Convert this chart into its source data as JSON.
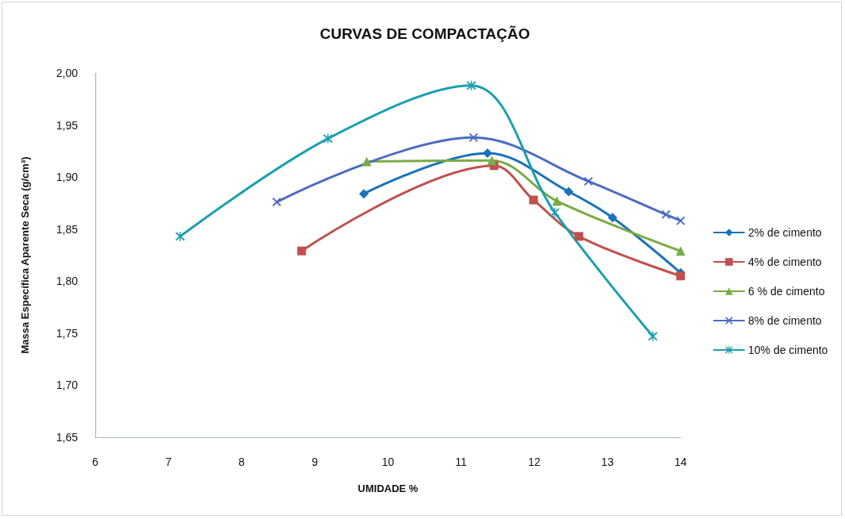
{
  "chart_data": {
    "type": "line",
    "title": "CURVAS DE COMPACTAÇÃO",
    "xlabel": "UMIDADE %",
    "ylabel": "Massa Específica Aparente Seca (g/cm³)",
    "xlim": [
      6,
      14
    ],
    "xticks": [
      6,
      7,
      8,
      9,
      10,
      11,
      12,
      13,
      14
    ],
    "ylim": [
      1.65,
      2.0
    ],
    "yticks": [
      {
        "value": 1.65,
        "label": "1,65"
      },
      {
        "value": 1.7,
        "label": "1,70"
      },
      {
        "value": 1.75,
        "label": "1,75"
      },
      {
        "value": 1.8,
        "label": "1,80"
      },
      {
        "value": 1.85,
        "label": "1,85"
      },
      {
        "value": 1.9,
        "label": "1,90"
      },
      {
        "value": 1.95,
        "label": "1,95"
      },
      {
        "value": 2.0,
        "label": "2,00"
      }
    ],
    "grid": false,
    "legend": "right",
    "line_style": "solid",
    "series": [
      {
        "name": "2% de cimento",
        "color": "#1a72b9",
        "marker": "diamond",
        "x": [
          9.67,
          11.36,
          12.47,
          13.07,
          14
        ],
        "values": [
          1.884,
          1.923,
          1.886,
          1.861,
          1.808
        ]
      },
      {
        "name": "4% de cimento",
        "color": "#c0504d",
        "marker": "square",
        "x": [
          8.82,
          11.45,
          11.99,
          12.61,
          14
        ],
        "values": [
          1.829,
          1.911,
          1.878,
          1.843,
          1.805
        ]
      },
      {
        "name": "6 % de cimento",
        "color": "#7aac46",
        "marker": "triangle",
        "x": [
          9.71,
          11.42,
          12.31,
          14
        ],
        "values": [
          1.915,
          1.916,
          1.877,
          1.829
        ]
      },
      {
        "name": "8% de cimento",
        "color": "#4b6cc1",
        "marker": "cross",
        "x": [
          8.48,
          11.17,
          12.74,
          13.8,
          14
        ],
        "values": [
          1.876,
          1.938,
          1.896,
          1.864,
          1.858
        ]
      },
      {
        "name": "10% de cimento",
        "color": "#1a9fb0",
        "marker": "star",
        "x": [
          7.16,
          9.18,
          11.14,
          12.28,
          13.62
        ],
        "values": [
          1.843,
          1.937,
          1.988,
          1.866,
          1.747
        ]
      }
    ]
  }
}
